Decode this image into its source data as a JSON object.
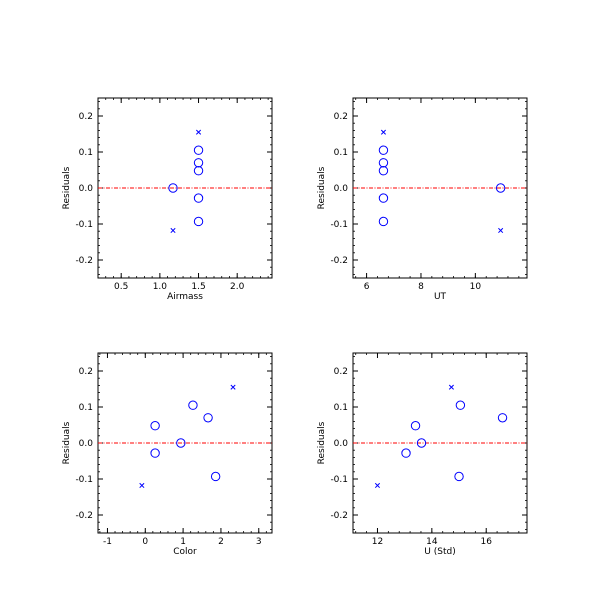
{
  "chart_data": [
    {
      "type": "scatter",
      "xlabel": "Airmass",
      "ylabel": "Residuals",
      "xlim": [
        0.2,
        2.45
      ],
      "ylim": [
        -0.25,
        0.25
      ],
      "xticks": [
        0.5,
        1.0,
        1.5,
        2.0
      ],
      "xtick_labels": [
        "0.5",
        "1.0",
        "1.5",
        "2.0"
      ],
      "yticks": [
        -0.2,
        -0.1,
        0.0,
        0.1,
        0.2
      ],
      "ytick_labels": [
        "-0.2",
        "-0.1",
        "0.0",
        "0.1",
        "0.2"
      ],
      "reference_line": 0.0,
      "series": [
        {
          "marker": "circle",
          "points": [
            [
              1.17,
              0.0
            ],
            [
              1.5,
              0.105
            ],
            [
              1.5,
              0.07
            ],
            [
              1.5,
              0.048
            ],
            [
              1.5,
              -0.028
            ],
            [
              1.5,
              -0.093
            ]
          ]
        },
        {
          "marker": "x",
          "points": [
            [
              1.5,
              0.155
            ],
            [
              1.17,
              -0.118
            ]
          ]
        }
      ]
    },
    {
      "type": "scatter",
      "xlabel": "UT",
      "ylabel": "Residuals",
      "xlim": [
        5.5,
        11.9
      ],
      "ylim": [
        -0.25,
        0.25
      ],
      "xticks": [
        6,
        8,
        10
      ],
      "xtick_labels": [
        "6",
        "8",
        "10"
      ],
      "yticks": [
        -0.2,
        -0.1,
        0.0,
        0.1,
        0.2
      ],
      "ytick_labels": [
        "-0.2",
        "-0.1",
        "0.0",
        "0.1",
        "0.2"
      ],
      "reference_line": 0.0,
      "series": [
        {
          "marker": "circle",
          "points": [
            [
              6.62,
              0.105
            ],
            [
              6.62,
              0.07
            ],
            [
              6.62,
              0.048
            ],
            [
              6.62,
              -0.028
            ],
            [
              6.62,
              -0.093
            ],
            [
              10.93,
              0.0
            ]
          ]
        },
        {
          "marker": "x",
          "points": [
            [
              6.62,
              0.155
            ],
            [
              10.93,
              -0.118
            ]
          ]
        }
      ]
    },
    {
      "type": "scatter",
      "xlabel": "Color",
      "ylabel": "Residuals",
      "xlim": [
        -1.25,
        3.35
      ],
      "ylim": [
        -0.25,
        0.25
      ],
      "xticks": [
        -1,
        0,
        1,
        2,
        3
      ],
      "xtick_labels": [
        "-1",
        "0",
        "1",
        "2",
        "3"
      ],
      "yticks": [
        -0.2,
        -0.1,
        0.0,
        0.1,
        0.2
      ],
      "ytick_labels": [
        "-0.2",
        "-0.1",
        "0.0",
        "0.1",
        "0.2"
      ],
      "reference_line": 0.0,
      "series": [
        {
          "marker": "circle",
          "points": [
            [
              0.26,
              0.048
            ],
            [
              0.26,
              -0.028
            ],
            [
              0.94,
              0.0
            ],
            [
              1.26,
              0.105
            ],
            [
              1.66,
              0.07
            ],
            [
              1.86,
              -0.093
            ]
          ]
        },
        {
          "marker": "x",
          "points": [
            [
              2.32,
              0.155
            ],
            [
              -0.09,
              -0.118
            ]
          ]
        }
      ]
    },
    {
      "type": "scatter",
      "xlabel": "U (Std)",
      "ylabel": "Residuals",
      "xlim": [
        11.1,
        17.5
      ],
      "ylim": [
        -0.25,
        0.25
      ],
      "xticks": [
        12,
        14,
        16
      ],
      "xtick_labels": [
        "12",
        "14",
        "16"
      ],
      "yticks": [
        -0.2,
        -0.1,
        0.0,
        0.1,
        0.2
      ],
      "ytick_labels": [
        "-0.2",
        "-0.1",
        "0.0",
        "0.1",
        "0.2"
      ],
      "reference_line": 0.0,
      "series": [
        {
          "marker": "circle",
          "points": [
            [
              13.05,
              -0.028
            ],
            [
              13.4,
              0.048
            ],
            [
              13.62,
              0.0
            ],
            [
              15.05,
              0.105
            ],
            [
              15.0,
              -0.093
            ],
            [
              16.6,
              0.07
            ]
          ]
        },
        {
          "marker": "x",
          "points": [
            [
              14.72,
              0.155
            ],
            [
              12.0,
              -0.118
            ]
          ]
        }
      ]
    }
  ],
  "colors": {
    "marker": "#0000ff",
    "reference_line": "#ff0000",
    "axes": "#000000"
  }
}
